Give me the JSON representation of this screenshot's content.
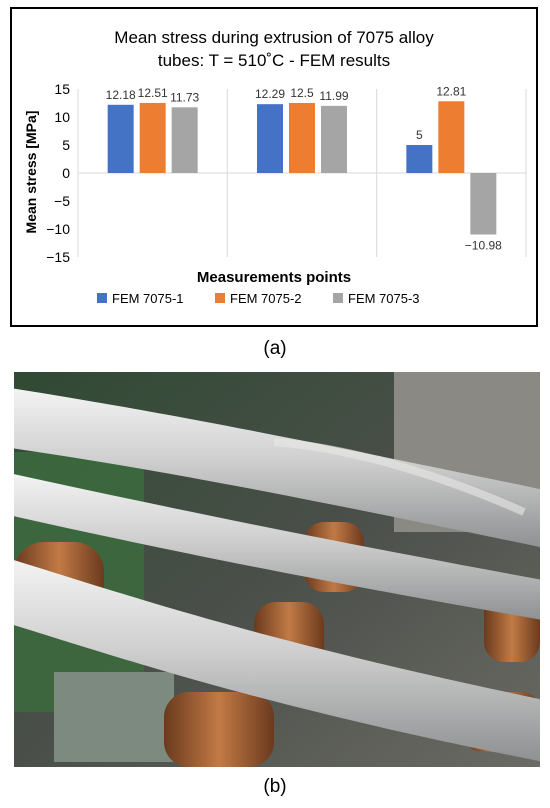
{
  "chart_data": {
    "type": "bar",
    "title": "Mean stress during extrusion of 7075 alloy tubes: T = 510˚C - FEM results",
    "title_lines": [
      "Mean stress during extrusion of 7075 alloy",
      "tubes: T = 510˚C - FEM results"
    ],
    "xlabel": "Measurements points",
    "ylabel": "Mean stress [MPa]",
    "ylim": [
      -15,
      15
    ],
    "yticks": [
      15,
      10,
      5,
      0,
      -5,
      -10,
      -15
    ],
    "categories": [
      "",
      "",
      ""
    ],
    "grid": "vertical category separators",
    "legend_position": "bottom",
    "series": [
      {
        "name": "FEM 7075-1",
        "color": "#4472C4",
        "values": [
          12.18,
          12.29,
          5
        ],
        "labels": [
          "12.18",
          "12.29",
          "5"
        ]
      },
      {
        "name": "FEM 7075-2",
        "color": "#ED7D31",
        "values": [
          12.51,
          12.5,
          12.81
        ],
        "labels": [
          "12.51",
          "12.5",
          "12.81"
        ]
      },
      {
        "name": "FEM 7075-3",
        "color": "#A5A5A5",
        "values": [
          11.73,
          11.99,
          -10.98
        ],
        "labels": [
          "11.73",
          "11.99",
          "−10.98"
        ]
      }
    ]
  },
  "captions": {
    "a": "(a)",
    "b": "(b)"
  },
  "photo": {
    "icon": "extruded-tubes-photo"
  }
}
